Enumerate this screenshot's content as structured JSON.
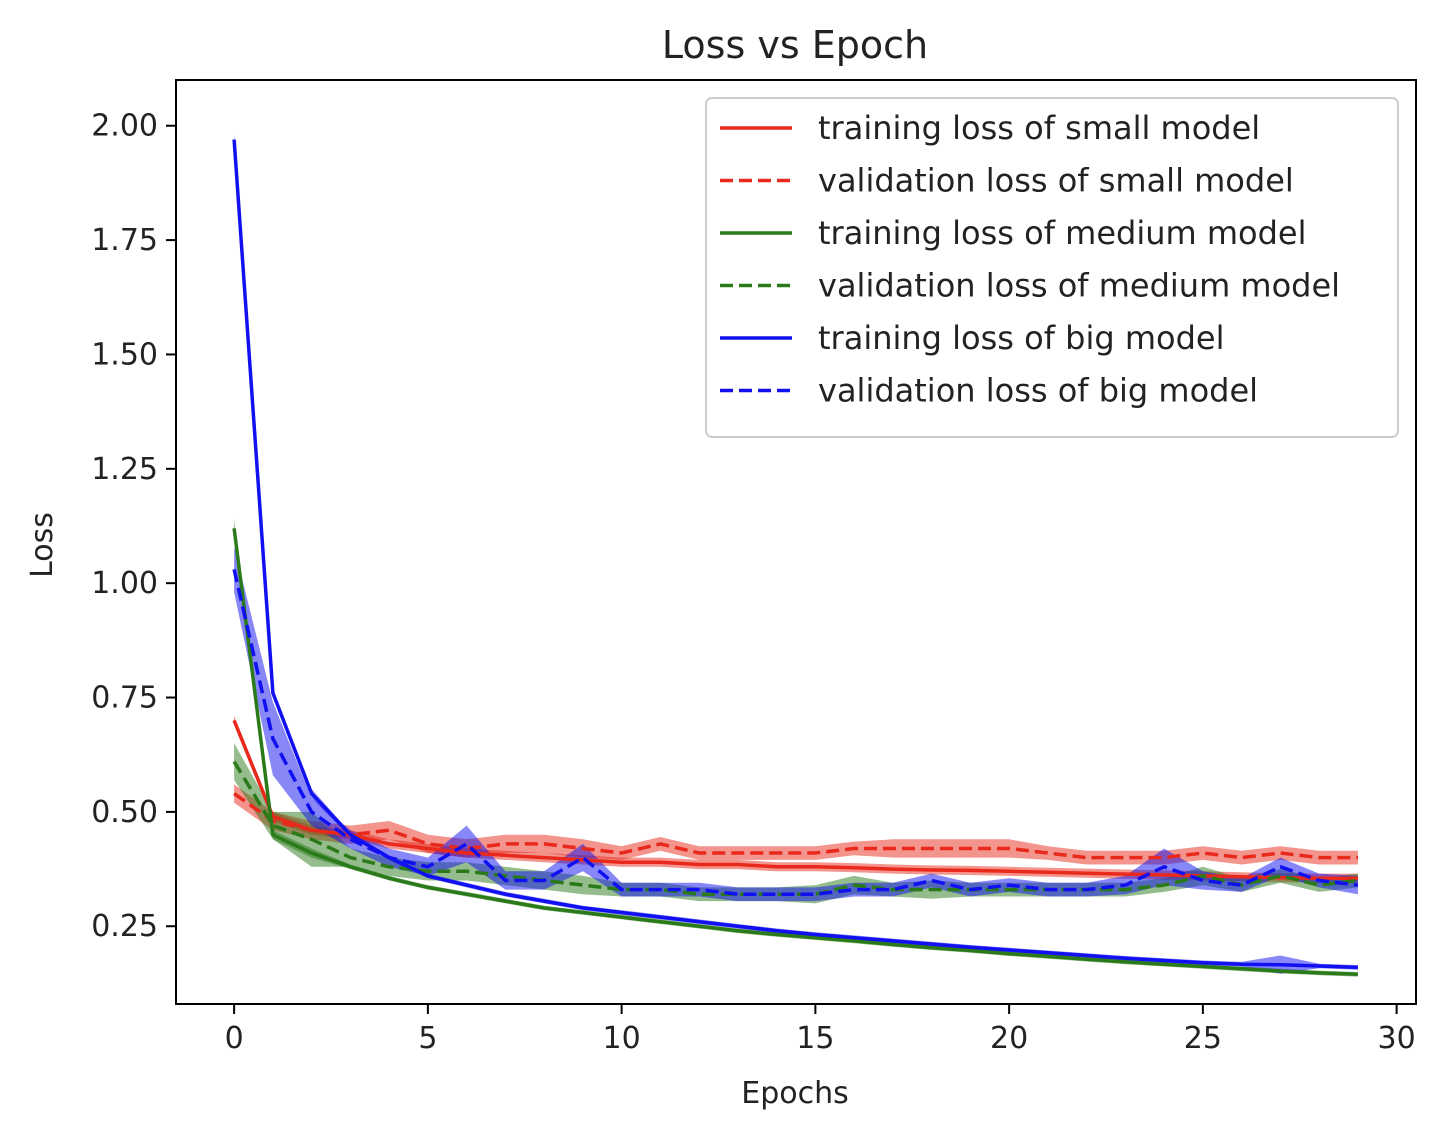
{
  "chart_data": {
    "type": "line",
    "title": "Loss vs Epoch",
    "xlabel": "Epochs",
    "ylabel": "Loss",
    "xlim": [
      -1.5,
      30.5
    ],
    "ylim": [
      0.08,
      2.1
    ],
    "xticks": [
      0,
      5,
      10,
      15,
      20,
      25,
      30
    ],
    "yticks": [
      0.25,
      0.5,
      0.75,
      1.0,
      1.25,
      1.5,
      1.75,
      2.0
    ],
    "ytick_labels": [
      "0.25",
      "0.50",
      "0.75",
      "1.00",
      "1.25",
      "1.50",
      "1.75",
      "2.00"
    ],
    "legend_position": "top-right",
    "grid": false,
    "x": [
      0,
      1,
      2,
      3,
      4,
      5,
      6,
      7,
      8,
      9,
      10,
      11,
      12,
      13,
      14,
      15,
      16,
      17,
      18,
      19,
      20,
      21,
      22,
      23,
      24,
      25,
      26,
      27,
      28,
      29
    ],
    "series": [
      {
        "name": "training loss of small model",
        "color": "#e8291c",
        "dash": "solid",
        "values": [
          0.7,
          0.49,
          0.46,
          0.45,
          0.43,
          0.42,
          0.41,
          0.405,
          0.4,
          0.395,
          0.39,
          0.39,
          0.385,
          0.385,
          0.38,
          0.38,
          0.378,
          0.375,
          0.373,
          0.372,
          0.37,
          0.368,
          0.366,
          0.364,
          0.362,
          0.36,
          0.358,
          0.356,
          0.355,
          0.355
        ],
        "band": [
          0.01,
          0.01,
          0.01,
          0.01,
          0.01,
          0.01,
          0.01,
          0.01,
          0.01,
          0.01,
          0.01,
          0.01,
          0.01,
          0.01,
          0.01,
          0.01,
          0.01,
          0.01,
          0.01,
          0.01,
          0.01,
          0.01,
          0.01,
          0.01,
          0.01,
          0.01,
          0.01,
          0.01,
          0.01,
          0.01
        ]
      },
      {
        "name": "validation loss of small model",
        "color": "#e8291c",
        "dash": "dashed",
        "values": [
          0.54,
          0.48,
          0.46,
          0.45,
          0.46,
          0.43,
          0.42,
          0.43,
          0.43,
          0.42,
          0.41,
          0.43,
          0.41,
          0.41,
          0.41,
          0.41,
          0.42,
          0.42,
          0.42,
          0.42,
          0.42,
          0.41,
          0.4,
          0.4,
          0.4,
          0.41,
          0.4,
          0.41,
          0.4,
          0.4
        ],
        "band": [
          0.02,
          0.02,
          0.02,
          0.02,
          0.02,
          0.02,
          0.02,
          0.02,
          0.02,
          0.02,
          0.015,
          0.015,
          0.015,
          0.015,
          0.015,
          0.015,
          0.015,
          0.02,
          0.02,
          0.02,
          0.02,
          0.015,
          0.015,
          0.015,
          0.015,
          0.015,
          0.015,
          0.015,
          0.015,
          0.015
        ]
      },
      {
        "name": "training loss of medium model",
        "color": "#2a7a1a",
        "dash": "solid",
        "values": [
          1.12,
          0.45,
          0.41,
          0.38,
          0.355,
          0.335,
          0.32,
          0.305,
          0.29,
          0.28,
          0.27,
          0.26,
          0.25,
          0.24,
          0.232,
          0.225,
          0.218,
          0.21,
          0.203,
          0.197,
          0.19,
          0.184,
          0.178,
          0.172,
          0.167,
          0.162,
          0.157,
          0.152,
          0.148,
          0.145
        ],
        "band": [
          0.02,
          0.01,
          0.01,
          0.005,
          0.005,
          0.005,
          0.005,
          0.005,
          0.005,
          0.005,
          0.005,
          0.005,
          0.005,
          0.005,
          0.005,
          0.005,
          0.005,
          0.005,
          0.005,
          0.005,
          0.005,
          0.005,
          0.005,
          0.005,
          0.005,
          0.005,
          0.005,
          0.005,
          0.005,
          0.005
        ]
      },
      {
        "name": "validation loss of medium model",
        "color": "#2a7a1a",
        "dash": "dashed",
        "values": [
          0.61,
          0.47,
          0.44,
          0.4,
          0.38,
          0.37,
          0.37,
          0.36,
          0.35,
          0.34,
          0.33,
          0.33,
          0.32,
          0.32,
          0.32,
          0.32,
          0.34,
          0.33,
          0.33,
          0.33,
          0.33,
          0.33,
          0.33,
          0.33,
          0.34,
          0.36,
          0.34,
          0.36,
          0.34,
          0.35
        ],
        "band": [
          0.04,
          0.03,
          0.06,
          0.02,
          0.02,
          0.02,
          0.02,
          0.02,
          0.02,
          0.02,
          0.015,
          0.015,
          0.015,
          0.015,
          0.015,
          0.02,
          0.02,
          0.015,
          0.02,
          0.015,
          0.015,
          0.015,
          0.015,
          0.015,
          0.015,
          0.02,
          0.015,
          0.015,
          0.015,
          0.015
        ]
      },
      {
        "name": "training loss of big model",
        "color": "#1010f0",
        "dash": "solid",
        "values": [
          1.97,
          0.76,
          0.54,
          0.45,
          0.4,
          0.36,
          0.34,
          0.32,
          0.305,
          0.29,
          0.28,
          0.27,
          0.26,
          0.25,
          0.24,
          0.232,
          0.225,
          0.218,
          0.211,
          0.204,
          0.198,
          0.192,
          0.186,
          0.18,
          0.175,
          0.17,
          0.167,
          0.166,
          0.163,
          0.16
        ],
        "band": [
          0.01,
          0.01,
          0.01,
          0.005,
          0.005,
          0.005,
          0.005,
          0.005,
          0.005,
          0.005,
          0.005,
          0.005,
          0.005,
          0.005,
          0.005,
          0.005,
          0.005,
          0.005,
          0.005,
          0.005,
          0.005,
          0.005,
          0.005,
          0.005,
          0.005,
          0.005,
          0.005,
          0.02,
          0.005,
          0.005
        ]
      },
      {
        "name": "validation loss of big model",
        "color": "#1010f0",
        "dash": "dashed",
        "values": [
          1.03,
          0.66,
          0.5,
          0.44,
          0.4,
          0.38,
          0.43,
          0.35,
          0.35,
          0.4,
          0.33,
          0.33,
          0.33,
          0.32,
          0.32,
          0.32,
          0.33,
          0.33,
          0.35,
          0.33,
          0.34,
          0.33,
          0.33,
          0.34,
          0.38,
          0.35,
          0.34,
          0.38,
          0.35,
          0.34
        ],
        "band": [
          0.05,
          0.08,
          0.03,
          0.02,
          0.02,
          0.02,
          0.04,
          0.02,
          0.02,
          0.03,
          0.015,
          0.015,
          0.015,
          0.015,
          0.015,
          0.015,
          0.015,
          0.015,
          0.015,
          0.015,
          0.015,
          0.015,
          0.015,
          0.02,
          0.04,
          0.02,
          0.015,
          0.02,
          0.015,
          0.02
        ]
      }
    ]
  }
}
